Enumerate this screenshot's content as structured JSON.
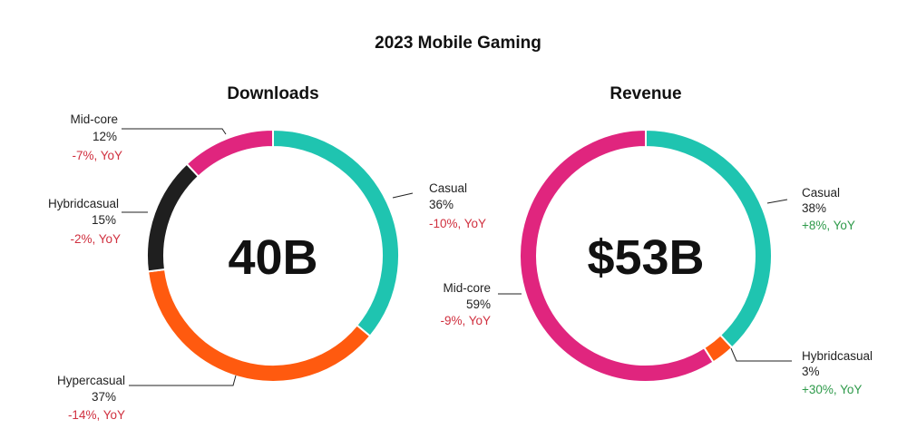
{
  "main_title": "2023 Mobile Gaming",
  "colors": {
    "Casual": "#1fc4b0",
    "Mid-core": "#e0257e",
    "Hybridcasual": "#1f1f1f",
    "Hypercasual": "#ff5a0f",
    "hybrid_revenue": "#ff5a0f",
    "negative": "#d0303f",
    "positive": "#2e9a4a"
  },
  "chart_data": [
    {
      "type": "pie",
      "title": "Downloads",
      "total_label": "40B",
      "slices": [
        {
          "name": "Casual",
          "value": 36,
          "pct_label": "36%",
          "yoy": "-10%, YoY",
          "yoy_sign": "negative"
        },
        {
          "name": "Hypercasual",
          "value": 37,
          "pct_label": "37%",
          "yoy": "-14%, YoY",
          "yoy_sign": "negative"
        },
        {
          "name": "Hybridcasual",
          "value": 15,
          "pct_label": "15%",
          "yoy": "-2%, YoY",
          "yoy_sign": "negative"
        },
        {
          "name": "Mid-core",
          "value": 12,
          "pct_label": "12%",
          "yoy": "-7%, YoY",
          "yoy_sign": "negative"
        }
      ]
    },
    {
      "type": "pie",
      "title": "Revenue",
      "total_label": "$53B",
      "slices": [
        {
          "name": "Casual",
          "value": 38,
          "pct_label": "38%",
          "yoy": "+8%, YoY",
          "yoy_sign": "positive"
        },
        {
          "name": "Hybridcasual",
          "value": 3,
          "pct_label": "3%",
          "yoy": "+30%, YoY",
          "yoy_sign": "positive"
        },
        {
          "name": "Mid-core",
          "value": 59,
          "pct_label": "59%",
          "yoy": "-9%, YoY",
          "yoy_sign": "negative"
        }
      ]
    }
  ]
}
